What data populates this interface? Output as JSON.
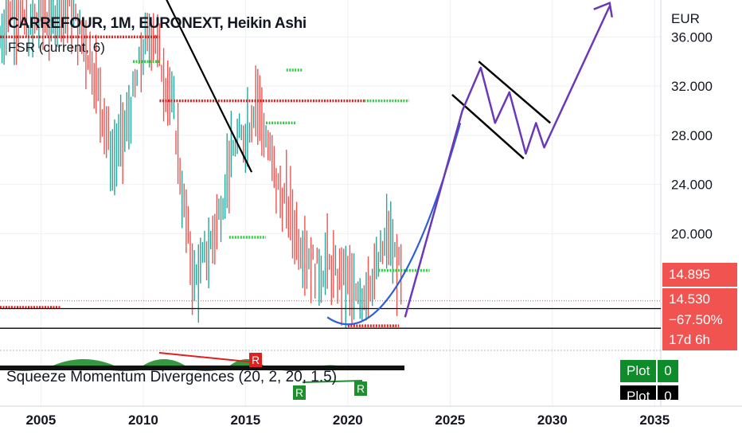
{
  "header": {
    "title": "CARREFOUR, 1M, EURONEXT, Heikin Ashi",
    "indicator": "FSR (current, 6)",
    "currency": "EUR"
  },
  "price_tags": {
    "price": "14.895",
    "level": "14.530",
    "change": "−67.50%",
    "countdown": "17d 6h",
    "color": "#f05350"
  },
  "oscillator": {
    "label": "Squeeze Momentum Divergences (20, 2, 20, 1.5)",
    "markers": [
      "R",
      "R",
      "R"
    ],
    "plots": [
      {
        "label": "Plot",
        "value": "0"
      },
      {
        "label": "Plot",
        "value": "0"
      }
    ]
  },
  "chart_data": {
    "type": "line",
    "x_ticks": [
      "2005",
      "2010",
      "2015",
      "2020",
      "2025",
      "2030",
      "2035"
    ],
    "y_ticks": [
      "20.000",
      "24.000",
      "28.000",
      "32.000",
      "36.000"
    ],
    "ylim": [
      10.5,
      39
    ],
    "xlim": [
      2003.0,
      2035.3
    ],
    "colors": {
      "up": "#26a69a",
      "down": "#ef5350",
      "green_level": "#2ecc40",
      "red_level": "#e02020",
      "projection": "#6a38b8",
      "cup": "#2f5fd8",
      "trend": "#000000"
    },
    "series": [
      {
        "name": "",
        "x": [
          2003.0,
          2003.5,
          2004.0,
          2004.5,
          2005.0,
          2005.5,
          2006.0,
          2006.5,
          2007.0,
          2007.5,
          2008.0,
          2008.5,
          2009.0,
          2009.5,
          2010.0,
          2010.5,
          2011.0,
          2011.5,
          2012.0,
          2012.5,
          2013.0,
          2013.5,
          2014.0,
          2014.5,
          2015.0,
          2015.5,
          2016.0,
          2016.5,
          2017.0,
          2017.5,
          2018.0,
          2018.5,
          2019.0,
          2019.5,
          2020.0,
          2020.5,
          2021.0,
          2021.5,
          2022.0,
          2022.5,
          2022.7
        ],
        "y": [
          36.0,
          38.5,
          37.5,
          36.5,
          38.0,
          37.5,
          39.0,
          38.0,
          36.0,
          34.0,
          30.0,
          26.0,
          27.5,
          31.0,
          35.0,
          36.5,
          33.0,
          30.0,
          22.0,
          16.0,
          18.0,
          20.0,
          24.0,
          27.5,
          28.0,
          31.0,
          28.0,
          24.0,
          22.5,
          20.0,
          18.5,
          17.0,
          17.5,
          16.5,
          16.0,
          14.5,
          16.0,
          17.5,
          20.0,
          17.0,
          15.0
        ]
      }
    ],
    "levels": [
      {
        "y": 36.0,
        "from": 2003.0,
        "to": 2010.8,
        "color": "red"
      },
      {
        "y": 30.8,
        "from": 2010.8,
        "to": 2020.8,
        "color": "red"
      },
      {
        "y": 30.8,
        "from": 2020.8,
        "to": 2023.0,
        "color": "green"
      },
      {
        "y": 33.3,
        "from": 2017.0,
        "to": 2017.8,
        "color": "green"
      },
      {
        "y": 29.0,
        "from": 2016.0,
        "to": 2017.5,
        "color": "green"
      },
      {
        "y": 19.7,
        "from": 2014.2,
        "to": 2016.0,
        "color": "green"
      },
      {
        "y": 17.0,
        "from": 2021.5,
        "to": 2024.0,
        "color": "green"
      },
      {
        "y": 14.0,
        "from": 2003.0,
        "to": 2006.0,
        "color": "red"
      },
      {
        "y": 12.5,
        "from": 2020.0,
        "to": 2022.5,
        "color": "red"
      },
      {
        "y": 34.0,
        "from": 2009.5,
        "to": 2010.8,
        "color": "green"
      }
    ],
    "horizontal_lines": [
      13.9,
      12.3
    ],
    "trendline": [
      [
        2011.0,
        39.5
      ],
      [
        2015.3,
        25.0
      ]
    ],
    "cup": [
      [
        2019.0,
        13.2
      ],
      [
        2022.2,
        11.8
      ],
      [
        2025.5,
        29.0
      ]
    ],
    "projection": [
      [
        2022.8,
        13.2
      ],
      [
        2025.6,
        30.0
      ],
      [
        2026.5,
        33.5
      ],
      [
        2027.2,
        29.0
      ],
      [
        2027.9,
        31.5
      ],
      [
        2028.7,
        26.5
      ],
      [
        2029.2,
        29.0
      ],
      [
        2029.6,
        27.0
      ],
      [
        2032.8,
        38.5
      ]
    ],
    "channel": [
      [
        [
          2026.4,
          34.0
        ],
        [
          2029.9,
          29.0
        ]
      ],
      [
        [
          2025.1,
          31.3
        ],
        [
          2028.6,
          26.1
        ]
      ]
    ],
    "grid": true,
    "price_scale": "right"
  }
}
